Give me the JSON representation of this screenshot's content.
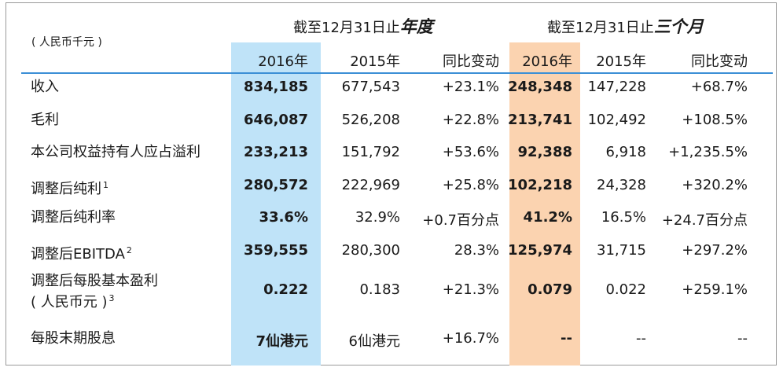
{
  "unit_label": "( 人民币千元 )",
  "header": {
    "year_prefix": "截至12月31日止",
    "year_suffix": "年度",
    "quarter_prefix": "截至12月31日止",
    "quarter_suffix": "三个月"
  },
  "columns": [
    "2016年",
    "2015年",
    "同比变动",
    "2016年",
    "2015年",
    "同比变动"
  ],
  "rows": [
    {
      "label": "收入",
      "note": "",
      "values": [
        "834,185",
        "677,543",
        "+23.1%",
        "248,348",
        "147,228",
        "+68.7%"
      ]
    },
    {
      "label": "毛利",
      "note": "",
      "values": [
        "646,087",
        "526,208",
        "+22.8%",
        "213,741",
        "102,492",
        "+108.5%"
      ]
    },
    {
      "label": "本公司权益持有人应占溢利",
      "note": "",
      "values": [
        "233,213",
        "151,792",
        "+53.6%",
        "92,388",
        "6,918",
        "+1,235.5%"
      ]
    },
    {
      "label": "调整后纯利",
      "note": "1",
      "values": [
        "280,572",
        "222,969",
        "+25.8%",
        "102,218",
        "24,328",
        "+320.2%"
      ]
    },
    {
      "label": "调整后纯利率",
      "note": "",
      "values": [
        "33.6%",
        "32.9%",
        "+0.7百分点",
        "41.2%",
        "16.5%",
        "+24.7百分点"
      ]
    },
    {
      "label": "调整后EBITDA",
      "note": "2",
      "values": [
        "359,555",
        "280,300",
        "28.3%",
        "125,974",
        "31,715",
        "+297.2%"
      ]
    },
    {
      "label": "调整后每股基本盈利",
      "label2": "( 人民币元 )",
      "note": "3",
      "values": [
        "0.222",
        "0.183",
        "+21.3%",
        "0.079",
        "0.022",
        "+259.1%"
      ]
    },
    {
      "label": "每股末期股息",
      "note": "",
      "values": [
        "7仙港元",
        "6仙港元",
        "+16.7%",
        "--",
        "--",
        "--"
      ]
    }
  ],
  "colors": {
    "year_highlight": "#bfe3f8",
    "quarter_highlight": "#fbd3b0",
    "rule": "#3b8fd6"
  }
}
